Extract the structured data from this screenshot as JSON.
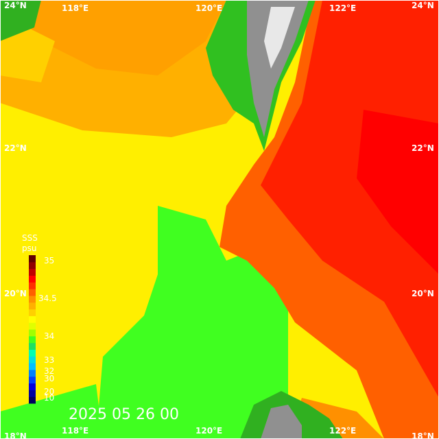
{
  "map": {
    "title": "SSS",
    "unit": "psu",
    "timestamp": "2025 05 26 00",
    "lon_labels": [
      "118°E",
      "120°E",
      "122°E"
    ],
    "lat_labels": [
      "24°N",
      "22°N",
      "20°N",
      "18°N"
    ],
    "colorbar": {
      "labels": [
        "35",
        "34.5",
        "34",
        "33",
        "32",
        "30",
        "20",
        "10"
      ],
      "colors": [
        "#000060",
        "#0000a0",
        "#0000e0",
        "#0040ff",
        "#0080ff",
        "#00c0ff",
        "#00e0e0",
        "#00ffb0",
        "#20e060",
        "#40ff20",
        "#a0ff00",
        "#e0ff00",
        "#ffff00",
        "#ffd000",
        "#ffb000",
        "#ff9000",
        "#ff6000",
        "#ff3000",
        "#ff0000",
        "#c00000",
        "#900000",
        "#600000"
      ]
    }
  }
}
